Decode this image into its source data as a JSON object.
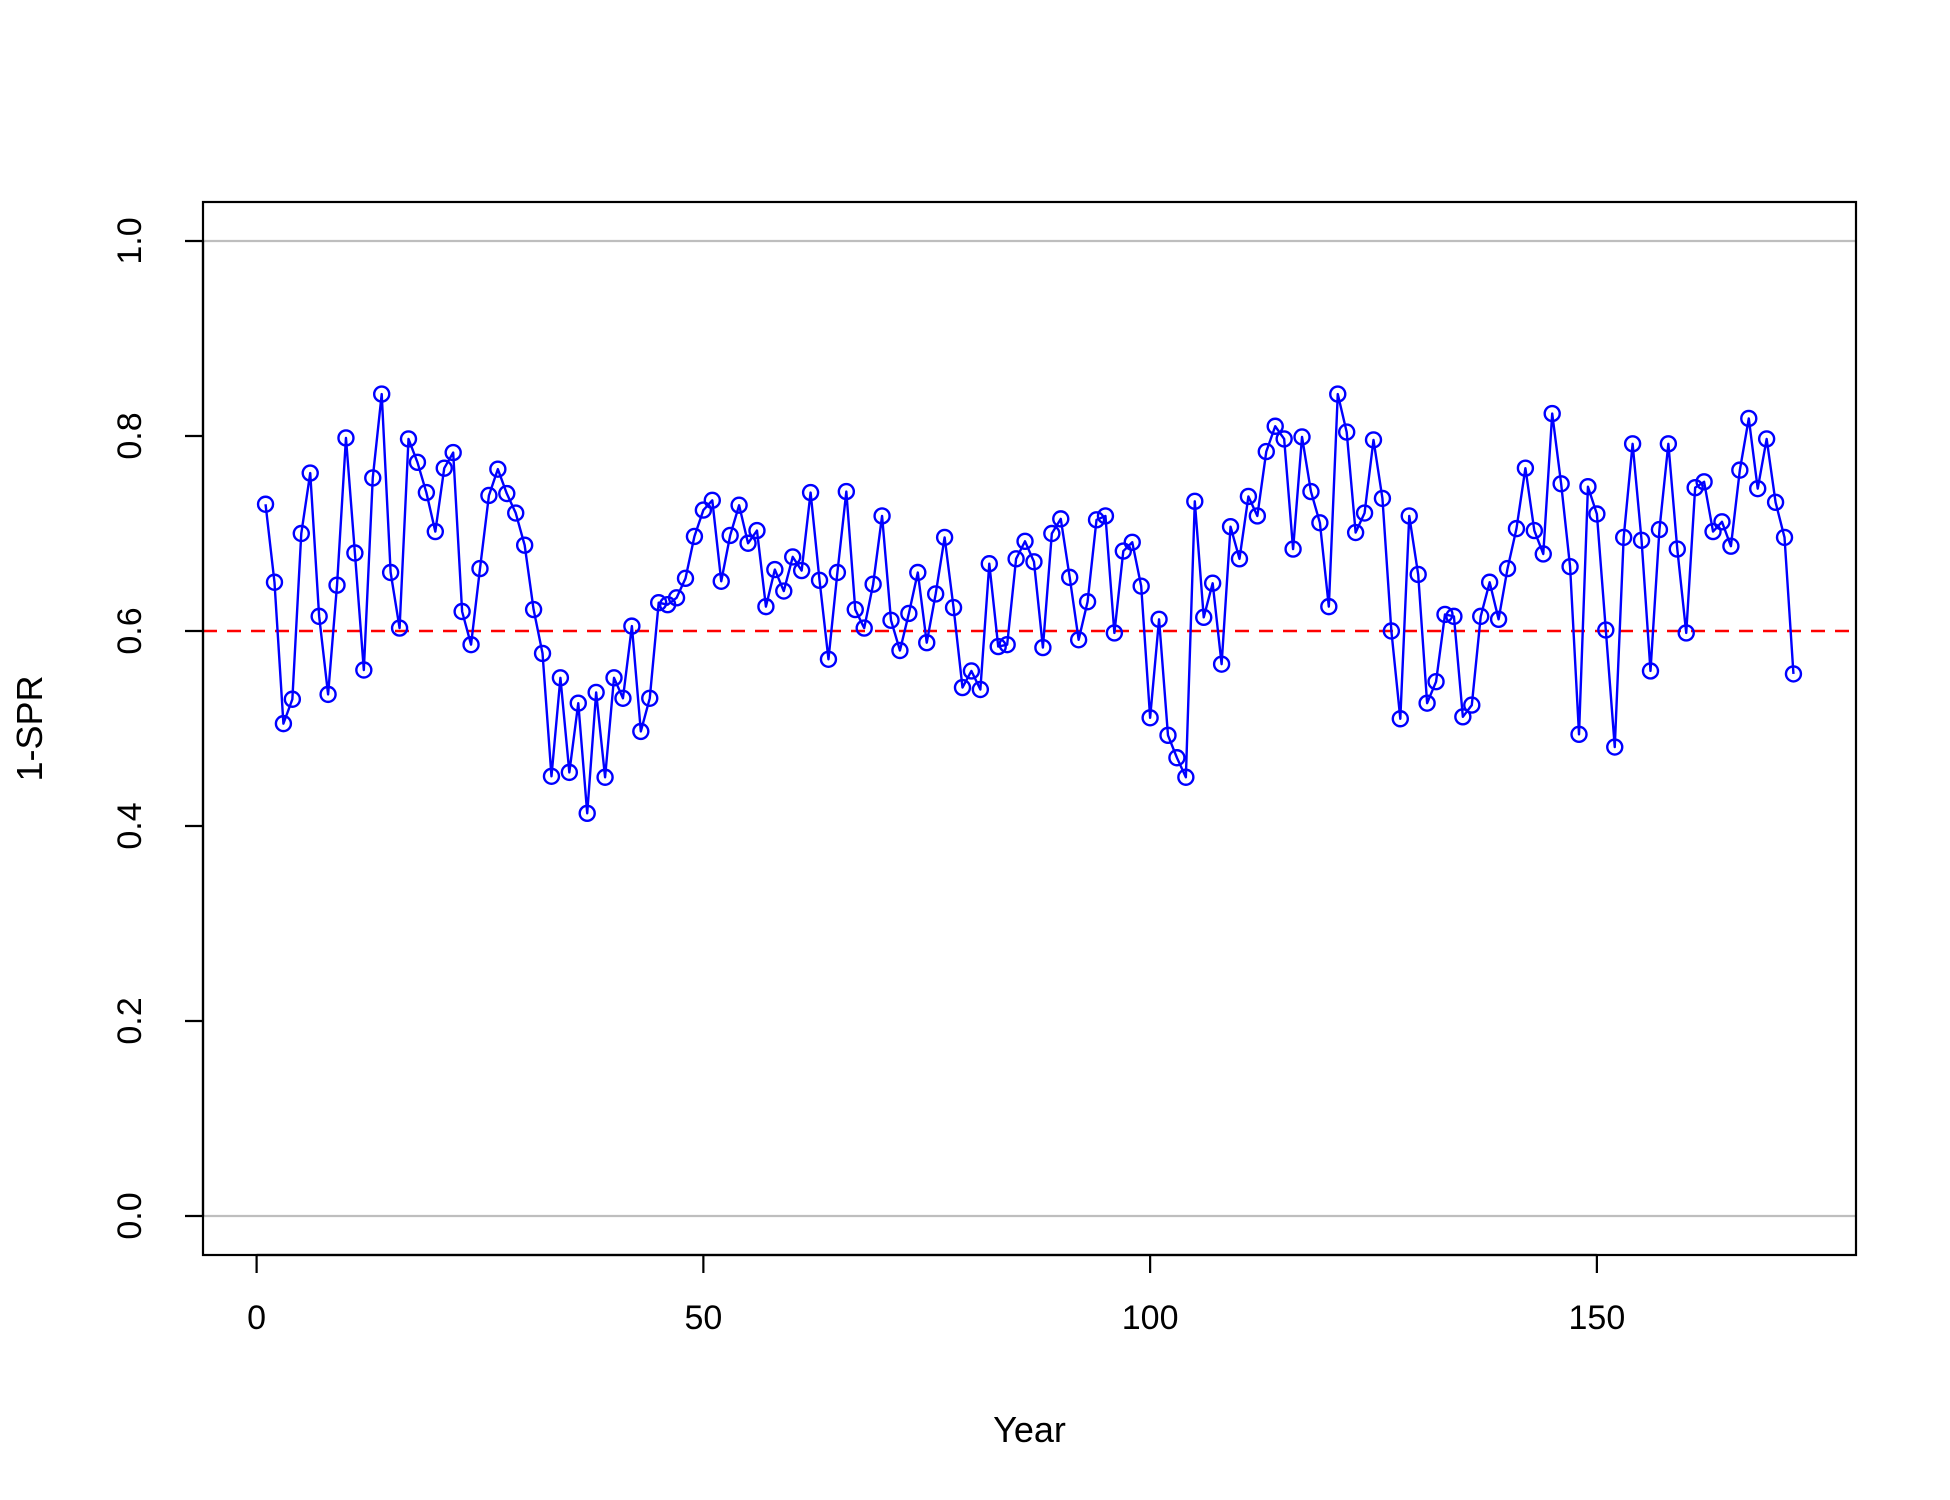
{
  "chart_data": {
    "type": "line",
    "title": "",
    "xlabel": "Year",
    "ylabel": "1-SPR",
    "xlim": [
      -6,
      179
    ],
    "ylim": [
      -0.04,
      1.04
    ],
    "x_ticks": [
      0,
      50,
      100,
      150
    ],
    "x_tick_labels": [
      "0",
      "50",
      "100",
      "150"
    ],
    "y_ticks": [
      0,
      0.2,
      0.4,
      0.6,
      0.8,
      1.0
    ],
    "y_tick_labels": [
      "0.0",
      "0.2",
      "0.4",
      "0.6",
      "0.8",
      "1.0"
    ],
    "grid": false,
    "legend": "none",
    "reference_lines": [
      {
        "axis": "y",
        "value": 0.0,
        "style": "solid",
        "color": "#bebebe"
      },
      {
        "axis": "y",
        "value": 1.0,
        "style": "solid",
        "color": "#bebebe"
      },
      {
        "axis": "y",
        "value": 0.6,
        "style": "dashed",
        "color": "#ff0000"
      }
    ],
    "series": [
      {
        "color": "#0000ff",
        "marker": "open-circle",
        "x_start": 1,
        "x_step": 1,
        "values": [
          0.73,
          0.65,
          0.505,
          0.53,
          0.7,
          0.762,
          0.615,
          0.535,
          0.647,
          0.798,
          0.68,
          0.56,
          0.757,
          0.843,
          0.66,
          0.603,
          0.797,
          0.773,
          0.742,
          0.702,
          0.767,
          0.783,
          0.62,
          0.586,
          0.664,
          0.739,
          0.766,
          0.741,
          0.721,
          0.688,
          0.622,
          0.577,
          0.451,
          0.552,
          0.455,
          0.526,
          0.413,
          0.537,
          0.45,
          0.552,
          0.531,
          0.605,
          0.497,
          0.531,
          0.629,
          0.627,
          0.634,
          0.654,
          0.697,
          0.724,
          0.734,
          0.651,
          0.698,
          0.729,
          0.69,
          0.703,
          0.625,
          0.663,
          0.641,
          0.676,
          0.662,
          0.742,
          0.652,
          0.571,
          0.66,
          0.743,
          0.622,
          0.603,
          0.648,
          0.718,
          0.611,
          0.58,
          0.618,
          0.66,
          0.588,
          0.638,
          0.696,
          0.624,
          0.542,
          0.559,
          0.54,
          0.669,
          0.584,
          0.586,
          0.674,
          0.692,
          0.671,
          0.583,
          0.7,
          0.715,
          0.655,
          0.591,
          0.63,
          0.714,
          0.718,
          0.598,
          0.682,
          0.691,
          0.646,
          0.511,
          0.612,
          0.493,
          0.47,
          0.45,
          0.733,
          0.614,
          0.649,
          0.566,
          0.707,
          0.674,
          0.738,
          0.718,
          0.784,
          0.81,
          0.797,
          0.684,
          0.799,
          0.743,
          0.711,
          0.625,
          0.843,
          0.804,
          0.701,
          0.721,
          0.796,
          0.736,
          0.6,
          0.51,
          0.718,
          0.658,
          0.526,
          0.548,
          0.617,
          0.615,
          0.512,
          0.524,
          0.615,
          0.65,
          0.612,
          0.664,
          0.705,
          0.767,
          0.703,
          0.679,
          0.823,
          0.751,
          0.666,
          0.494,
          0.748,
          0.72,
          0.601,
          0.481,
          0.696,
          0.792,
          0.693,
          0.559,
          0.704,
          0.792,
          0.684,
          0.598,
          0.747,
          0.753,
          0.702,
          0.712,
          0.687,
          0.765,
          0.818,
          0.746,
          0.797,
          0.732,
          0.696,
          0.556
        ]
      }
    ]
  }
}
